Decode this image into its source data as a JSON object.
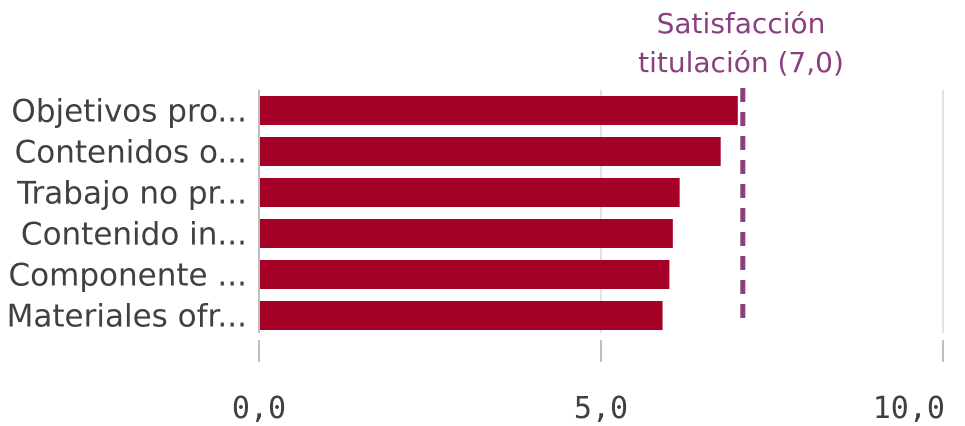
{
  "chart_data": {
    "type": "bar",
    "orientation": "horizontal",
    "categories": [
      "Objetivos pro...",
      "Contenidos o...",
      "Trabajo no pr...",
      "Contenido in...",
      "Componente ...",
      "Materiales ofr..."
    ],
    "values": [
      7.0,
      6.75,
      6.15,
      6.05,
      6.0,
      5.9
    ],
    "xlim": [
      0,
      10
    ],
    "xticks": [
      "0,0",
      "5,0",
      "10,0"
    ],
    "grid": true,
    "reference_line": {
      "value": 7.0,
      "label_line1": "Satisfacción",
      "label_line2": "titulación (7,0)",
      "style": "dashed"
    },
    "colors": {
      "bar": "#a50026",
      "reference": "#8a3f7f",
      "grid": "#d9d9d9",
      "axis": "#bfbfbf"
    }
  }
}
